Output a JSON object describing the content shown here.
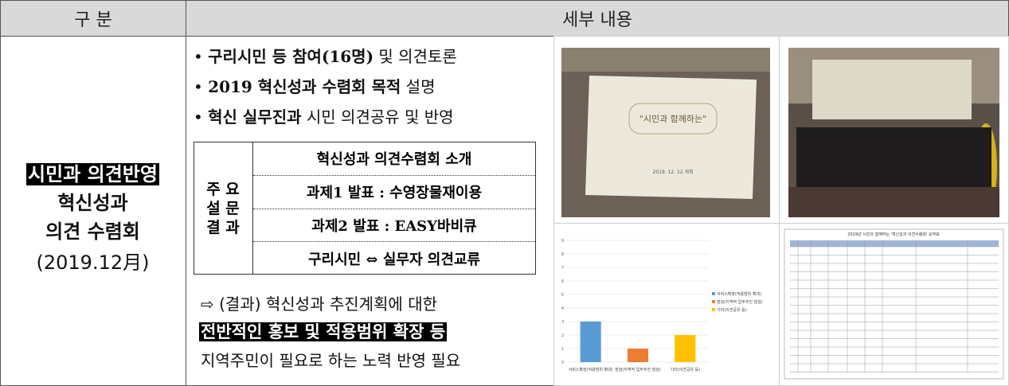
{
  "header": {
    "col1": "구 분",
    "col2": "세부 내용"
  },
  "category": {
    "highlight": "시민과 의견반영",
    "line2": "혁신성과",
    "line3": "의견 수렴회",
    "date": "(2019.12月)"
  },
  "bullets": [
    {
      "strong": "구리시민 등 참여(16명)",
      "text": " 및 의견토론"
    },
    {
      "strong": "2019 혁신성과 수렴회 목적",
      "text": " 설명"
    },
    {
      "strong": "혁신 실무진과",
      "text": " 시민 의견공유 및 반영"
    }
  ],
  "survey": {
    "label": [
      "주 요",
      "설 문",
      "결 과"
    ],
    "rows": [
      "혁신성과 의견수렴회 소개",
      "과제1 발표 : 수영장물재이용",
      "과제2 발표 : EASY바비큐",
      "구리시민 ⇔ 실무자 의견교류"
    ]
  },
  "result": {
    "line1": "⇨ (결과) 혁신성과 추진계획에 대한",
    "highlight": "전반적인 홍보 및 적용범위 확장 등",
    "line3": "지역주민이 필요로 하는 노력 반영 필요"
  },
  "photo1": {
    "slide_title": "\"시민과 함께하는\"",
    "slide_date": "2019. 12. 12.개최"
  },
  "sheet": {
    "title": "2019년 시민과 함께하는 '혁신성과 의견수렴회' 요약표"
  },
  "chart_data": {
    "type": "bar",
    "categories": [
      "서비스확장(적용범위 확대)",
      "점검(지역적 업무추진 점검)",
      "기타(의견공유 등)"
    ],
    "values": [
      3,
      1,
      2
    ],
    "colors": [
      "#5b9bd5",
      "#ed7d31",
      "#ffc000"
    ],
    "ylim": [
      0,
      9
    ],
    "yticks": [
      0,
      1,
      2,
      3,
      4,
      5,
      6,
      7,
      8,
      9
    ],
    "grid": true
  }
}
